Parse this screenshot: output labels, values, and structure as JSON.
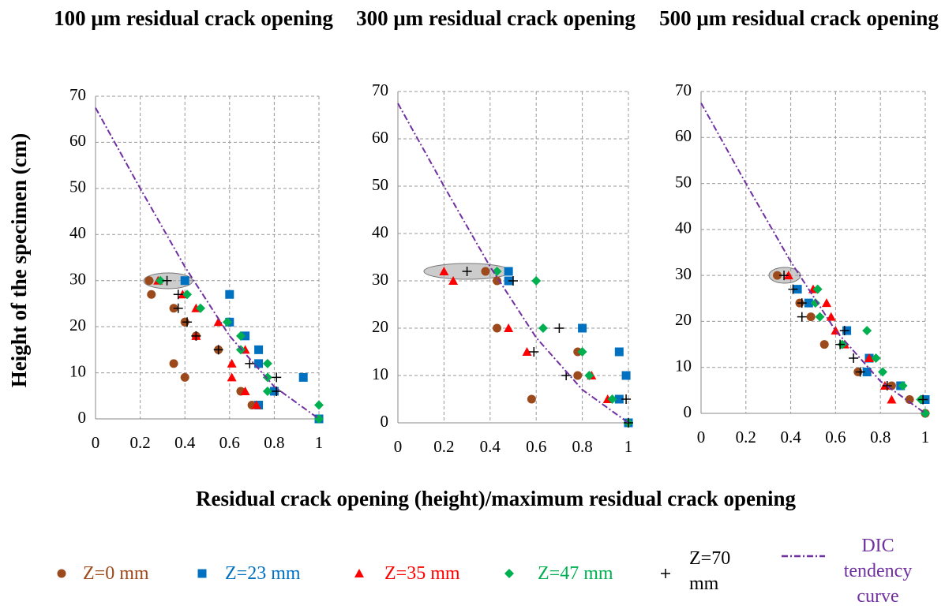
{
  "y_label": "Height of the specimen (cm)",
  "x_label": "Residual crack opening (height)/maximum residual crack opening",
  "legend": [
    {
      "name": "Z=0 mm",
      "color": "#9c4a1c",
      "marker": "circle"
    },
    {
      "name": "Z=23 mm",
      "color": "#0070c0",
      "marker": "square"
    },
    {
      "name": "Z=35 mm",
      "color": "#ff0000",
      "marker": "triangle"
    },
    {
      "name": "Z=47 mm",
      "color": "#00b050",
      "marker": "diamond"
    },
    {
      "name": "Z=70 mm",
      "color": "#000000",
      "marker": "plus"
    },
    {
      "name": "DIC tendency curve",
      "color": "#7030a0",
      "marker": "dashdot"
    }
  ],
  "chart_data": [
    {
      "type": "scatter",
      "title": "100 μm residual crack opening",
      "xlim": [
        0,
        1
      ],
      "ylim": [
        0,
        70
      ],
      "xticks": [
        0,
        0.2,
        0.4,
        0.6,
        0.8,
        1
      ],
      "yticks": [
        0,
        10,
        20,
        30,
        40,
        50,
        60,
        70
      ],
      "grid": true,
      "series": [
        {
          "x": [
            0.24,
            0.25,
            0.35,
            0.4,
            0.45,
            0.55,
            0.35,
            0.4,
            0.65,
            0.7,
            1
          ],
          "values": [
            30,
            27,
            24,
            21,
            18,
            15,
            12,
            9,
            6,
            3,
            0
          ]
        },
        {
          "x": [
            0.4,
            0.6,
            0.6,
            0.67,
            0.73,
            0.73,
            0.93,
            0.8,
            0.73,
            1
          ],
          "values": [
            30,
            27,
            21,
            18,
            15,
            12,
            9,
            6,
            3,
            0
          ]
        },
        {
          "x": [
            0.28,
            0.39,
            0.45,
            0.55,
            0.45,
            0.67,
            0.61,
            0.61,
            0.67,
            0.72
          ],
          "values": [
            30,
            27,
            24,
            21,
            18,
            15,
            12,
            9,
            6,
            3
          ]
        },
        {
          "x": [
            0.29,
            0.41,
            0.47,
            0.59,
            0.65,
            0.65,
            0.77,
            0.77,
            0.77,
            1,
            1
          ],
          "values": [
            30,
            27,
            24,
            21,
            18,
            15,
            12,
            9,
            6,
            3,
            0
          ]
        },
        {
          "x": [
            0.32,
            0.37,
            0.37,
            0.41,
            0.45,
            0.55,
            0.69,
            0.81,
            0.81
          ],
          "values": [
            30,
            27,
            24,
            21,
            18,
            15,
            12,
            9,
            6
          ]
        }
      ],
      "trend": {
        "x": [
          0,
          0.2,
          0.4,
          0.6,
          0.8,
          1
        ],
        "values": [
          67.5,
          50,
          33,
          18,
          7,
          0
        ]
      }
    },
    {
      "type": "scatter",
      "title": "300 μm residual crack opening",
      "xlim": [
        0,
        1
      ],
      "ylim": [
        0,
        70
      ],
      "xticks": [
        0,
        0.2,
        0.4,
        0.6,
        0.8,
        1
      ],
      "yticks": [
        0,
        10,
        20,
        30,
        40,
        50,
        60,
        70
      ],
      "grid": true,
      "series": [
        {
          "x": [
            0.38,
            0.43,
            0.43,
            0.78,
            0.78,
            0.58,
            1
          ],
          "values": [
            32,
            30,
            20,
            15,
            10,
            5,
            0
          ]
        },
        {
          "x": [
            0.48,
            0.48,
            0.8,
            0.96,
            0.99,
            0.96,
            1
          ],
          "values": [
            32,
            30,
            20,
            15,
            10,
            5,
            0
          ]
        },
        {
          "x": [
            0.2,
            0.24,
            0.48,
            0.56,
            0.84,
            0.91
          ],
          "values": [
            32,
            30,
            20,
            15,
            10,
            5
          ]
        },
        {
          "x": [
            0.43,
            0.6,
            0.63,
            0.8,
            0.83,
            0.93,
            1
          ],
          "values": [
            32,
            30,
            20,
            15,
            10,
            5,
            0
          ]
        },
        {
          "x": [
            0.3,
            0.5,
            0.7,
            0.59,
            0.73,
            0.99,
            1
          ],
          "values": [
            32,
            30,
            20,
            15,
            10,
            5,
            0
          ]
        }
      ],
      "trend": {
        "x": [
          0,
          0.2,
          0.4,
          0.6,
          0.8,
          1
        ],
        "values": [
          67.5,
          50,
          33,
          18,
          7,
          0
        ]
      }
    },
    {
      "type": "scatter",
      "title": "500 μm residual crack opening",
      "xlim": [
        0,
        1
      ],
      "ylim": [
        0,
        70
      ],
      "xticks": [
        0,
        0.2,
        0.4,
        0.6,
        0.8,
        1
      ],
      "yticks": [
        0,
        10,
        20,
        30,
        40,
        50,
        60,
        70
      ],
      "grid": true,
      "series": [
        {
          "x": [
            0.34,
            0.44,
            0.49,
            0.55,
            0.7,
            0.85,
            0.93,
            1
          ],
          "values": [
            30,
            24,
            21,
            15,
            9,
            6,
            3,
            0
          ]
        },
        {
          "x": [
            0.43,
            0.48,
            0.65,
            0.75,
            0.74,
            0.89,
            1
          ],
          "values": [
            27,
            24,
            18,
            12,
            9,
            6,
            3
          ]
        },
        {
          "x": [
            0.39,
            0.5,
            0.56,
            0.58,
            0.6,
            0.64,
            0.75,
            0.82,
            0.85
          ],
          "values": [
            30,
            27,
            24,
            21,
            18,
            15,
            12,
            6,
            3
          ]
        },
        {
          "x": [
            0.52,
            0.51,
            0.53,
            0.74,
            0.63,
            0.78,
            0.81,
            0.9,
            0.98,
            1
          ],
          "values": [
            27,
            24,
            21,
            18,
            15,
            12,
            9,
            6,
            3,
            0
          ]
        },
        {
          "x": [
            0.37,
            0.41,
            0.45,
            0.45,
            0.64,
            0.62,
            0.68,
            0.71,
            0.83,
            0.99
          ],
          "values": [
            30,
            27,
            24,
            21,
            18,
            15,
            12,
            9,
            6,
            3
          ]
        }
      ],
      "trend": {
        "x": [
          0,
          0.2,
          0.4,
          0.6,
          0.8,
          1
        ],
        "values": [
          67.5,
          50,
          33,
          18,
          7,
          0
        ]
      }
    }
  ]
}
